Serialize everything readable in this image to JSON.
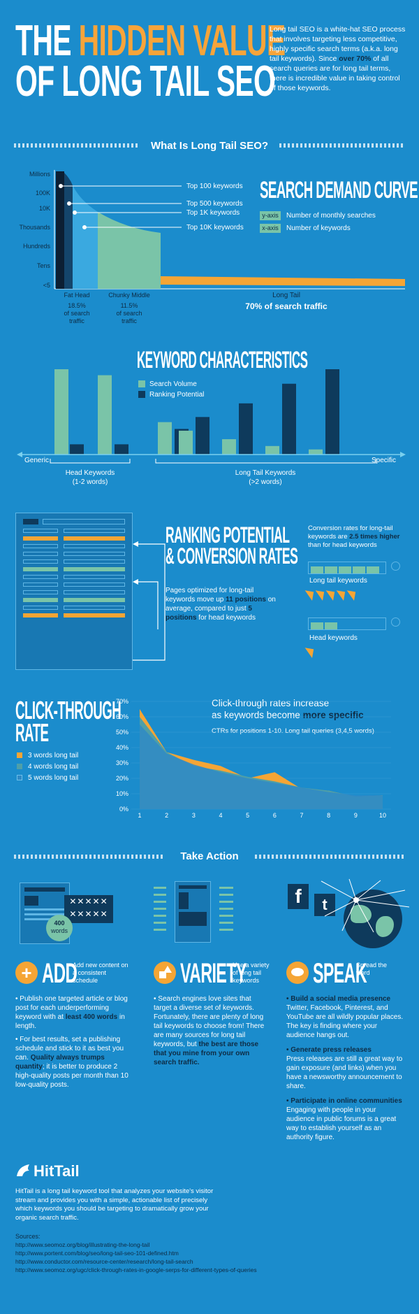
{
  "header": {
    "title_line1_a": "THE ",
    "title_line1_b": "HIDDEN VALUE",
    "title_line2": "OF LONG TAIL SEO",
    "intro_a": "Long tail SEO is a white-hat SEO process that involves targeting less competitive, highly specific search terms (a.k.a. long tail keywords). Since ",
    "intro_bold": "over 70%",
    "intro_b": " of all search queries are for long tail terms, there is incredible value in taking control of those keywords."
  },
  "section1": {
    "title": "What Is Long Tail SEO?"
  },
  "demand": {
    "title": "SEARCH DEMAND CURVE",
    "y_tag": "y-axis",
    "y_desc": "Number of monthly searches",
    "x_tag": "x-axis",
    "x_desc": "Number of keywords",
    "y_ticks": [
      "Millions",
      "100K",
      "10K",
      "Thousands",
      "Hundreds",
      "Tens",
      "<5"
    ],
    "callouts": [
      "Top 100 keywords",
      "Top 500 keywords",
      "Top 1K keywords",
      "Top 10K keywords"
    ],
    "fat_head": "Fat Head",
    "fat_head_pct": "18.5%",
    "fat_head_sub": "of search traffic",
    "chunky": "Chunky Middle",
    "chunky_pct": "11.5%",
    "chunky_sub": "of search traffic",
    "long_tail": "Long Tail",
    "long_tail_pct": "70% of search traffic"
  },
  "keyword_chars": {
    "title": "KEYWORD CHARACTERISTICS",
    "legend_volume": "Search Volume",
    "legend_ranking": "Ranking Potential",
    "generic": "Generic",
    "specific": "Specific",
    "head_label": "Head Keywords",
    "head_sub": "(1-2 words)",
    "long_label": "Long Tail Keywords",
    "long_sub": "(>2 words)",
    "colors": {
      "volume": "#7ac4a8",
      "ranking": "#0e3a5c"
    }
  },
  "ranking": {
    "title1": "RANKING POTENTIAL",
    "title2": "& CONVERSION RATES",
    "text_a": "Pages optimized for long-tail keywords move up ",
    "text_b": "11 positions",
    "text_c": " on average, compared to just ",
    "text_d": "5 positions",
    "text_e": " for head keywords",
    "conv_a": "Conversion rates for long-tail keywords are ",
    "conv_b": "2.5 times higher",
    "conv_c": " than for head keywords",
    "long_label": "Long tail keywords",
    "head_label": "Head keywords",
    "long_cursors": 5,
    "head_cursors": 1
  },
  "ctr": {
    "title1": "CLICK-THROUGH",
    "title2": "RATE",
    "headline_a": "Click-through rates increase",
    "headline_b": "as keywords become ",
    "headline_c": "more specific",
    "sub": "CTRs for positions 1-10. Long tail queries (3,4,5 words)",
    "legend": [
      "3 words long tail",
      "4 words long tail",
      "5  words long tail"
    ]
  },
  "chart_data": {
    "type": "area",
    "x": [
      1,
      2,
      3,
      4,
      5,
      6,
      7,
      8,
      9,
      10
    ],
    "ylim": [
      0,
      70
    ],
    "y_ticks": [
      "70%",
      "60%",
      "50%",
      "40%",
      "30%",
      "20%",
      "10%",
      "0%"
    ],
    "series": [
      {
        "name": "3 words long tail",
        "values": [
          65,
          37,
          32,
          28,
          20,
          24,
          13,
          12,
          8,
          9
        ],
        "color": "#f5a535"
      },
      {
        "name": "4 words long tail",
        "values": [
          60,
          37,
          28,
          25,
          21,
          18,
          14,
          12,
          8,
          9
        ],
        "color": "#4f9fa8"
      },
      {
        "name": "5  words long tail",
        "values": [
          55,
          36,
          29,
          24,
          20,
          17,
          14,
          11,
          9,
          9
        ],
        "color": "#2f89c6"
      }
    ]
  },
  "action": {
    "title": "Take Action",
    "add": {
      "title": "ADD",
      "tag": "Add new content on a consistent schedule",
      "badge_num": "400",
      "badge_txt": "words",
      "p1_a": "• Publish one targeted article or blog post for each underperforming keyword with at ",
      "p1_b": "least 400 words",
      "p1_c": " in length.",
      "p2_a": "• For best results, set a publishing schedule and stick to it as best you can. ",
      "p2_b": "Quality always trumps quantity",
      "p2_c": "; it is better to produce 2 high-quality posts per month than 10 low-quality posts."
    },
    "variety": {
      "title": "VARIETY",
      "tag": "Use a variety of long tail keywords",
      "p1_a": "• Search engines love sites that target a diverse set of keywords. Fortunately, there are plenty of long tail keywords to choose from! There are many sources for long tail keywords, but ",
      "p1_b": "the best are those that you mine from your own search traffic."
    },
    "speak": {
      "title": "SPEAK",
      "tag": "Spread the word",
      "h1": "• Build a social media presence",
      "t1": "Twitter, Facebook, Pinterest, and YouTube are all wildly popular places. The key is finding where your audience hangs out.",
      "h2": "• Generate press releases",
      "t2": "Press releases are still a great way to gain exposure (and links) when you have a newsworthy announcement to share.",
      "h3": "• Participate in online communities",
      "t3": "Engaging with people in your audience in public forums is a great way to establish yourself as an authority figure."
    }
  },
  "footer": {
    "brand": "HitTail",
    "desc": "HitTail is a long tail keyword tool that analyzes your website's visitor stream and provides you with a simple, actionable list of precisely which keywords you should be targeting to dramatically grow your organic search traffic.",
    "sources_label": "Sources:",
    "sources": [
      "http://www.seomoz.org/blog/illustrating-the-long-tail",
      "http://www.portent.com/blog/seo/long-tail-seo-101-defined.htm",
      "http://www.conductor.com/resource-center/research/long-tail-search",
      "http://www.seomoz.org/ugc/click-through-rates-in-google-serps-for-different-types-of-queries"
    ]
  }
}
